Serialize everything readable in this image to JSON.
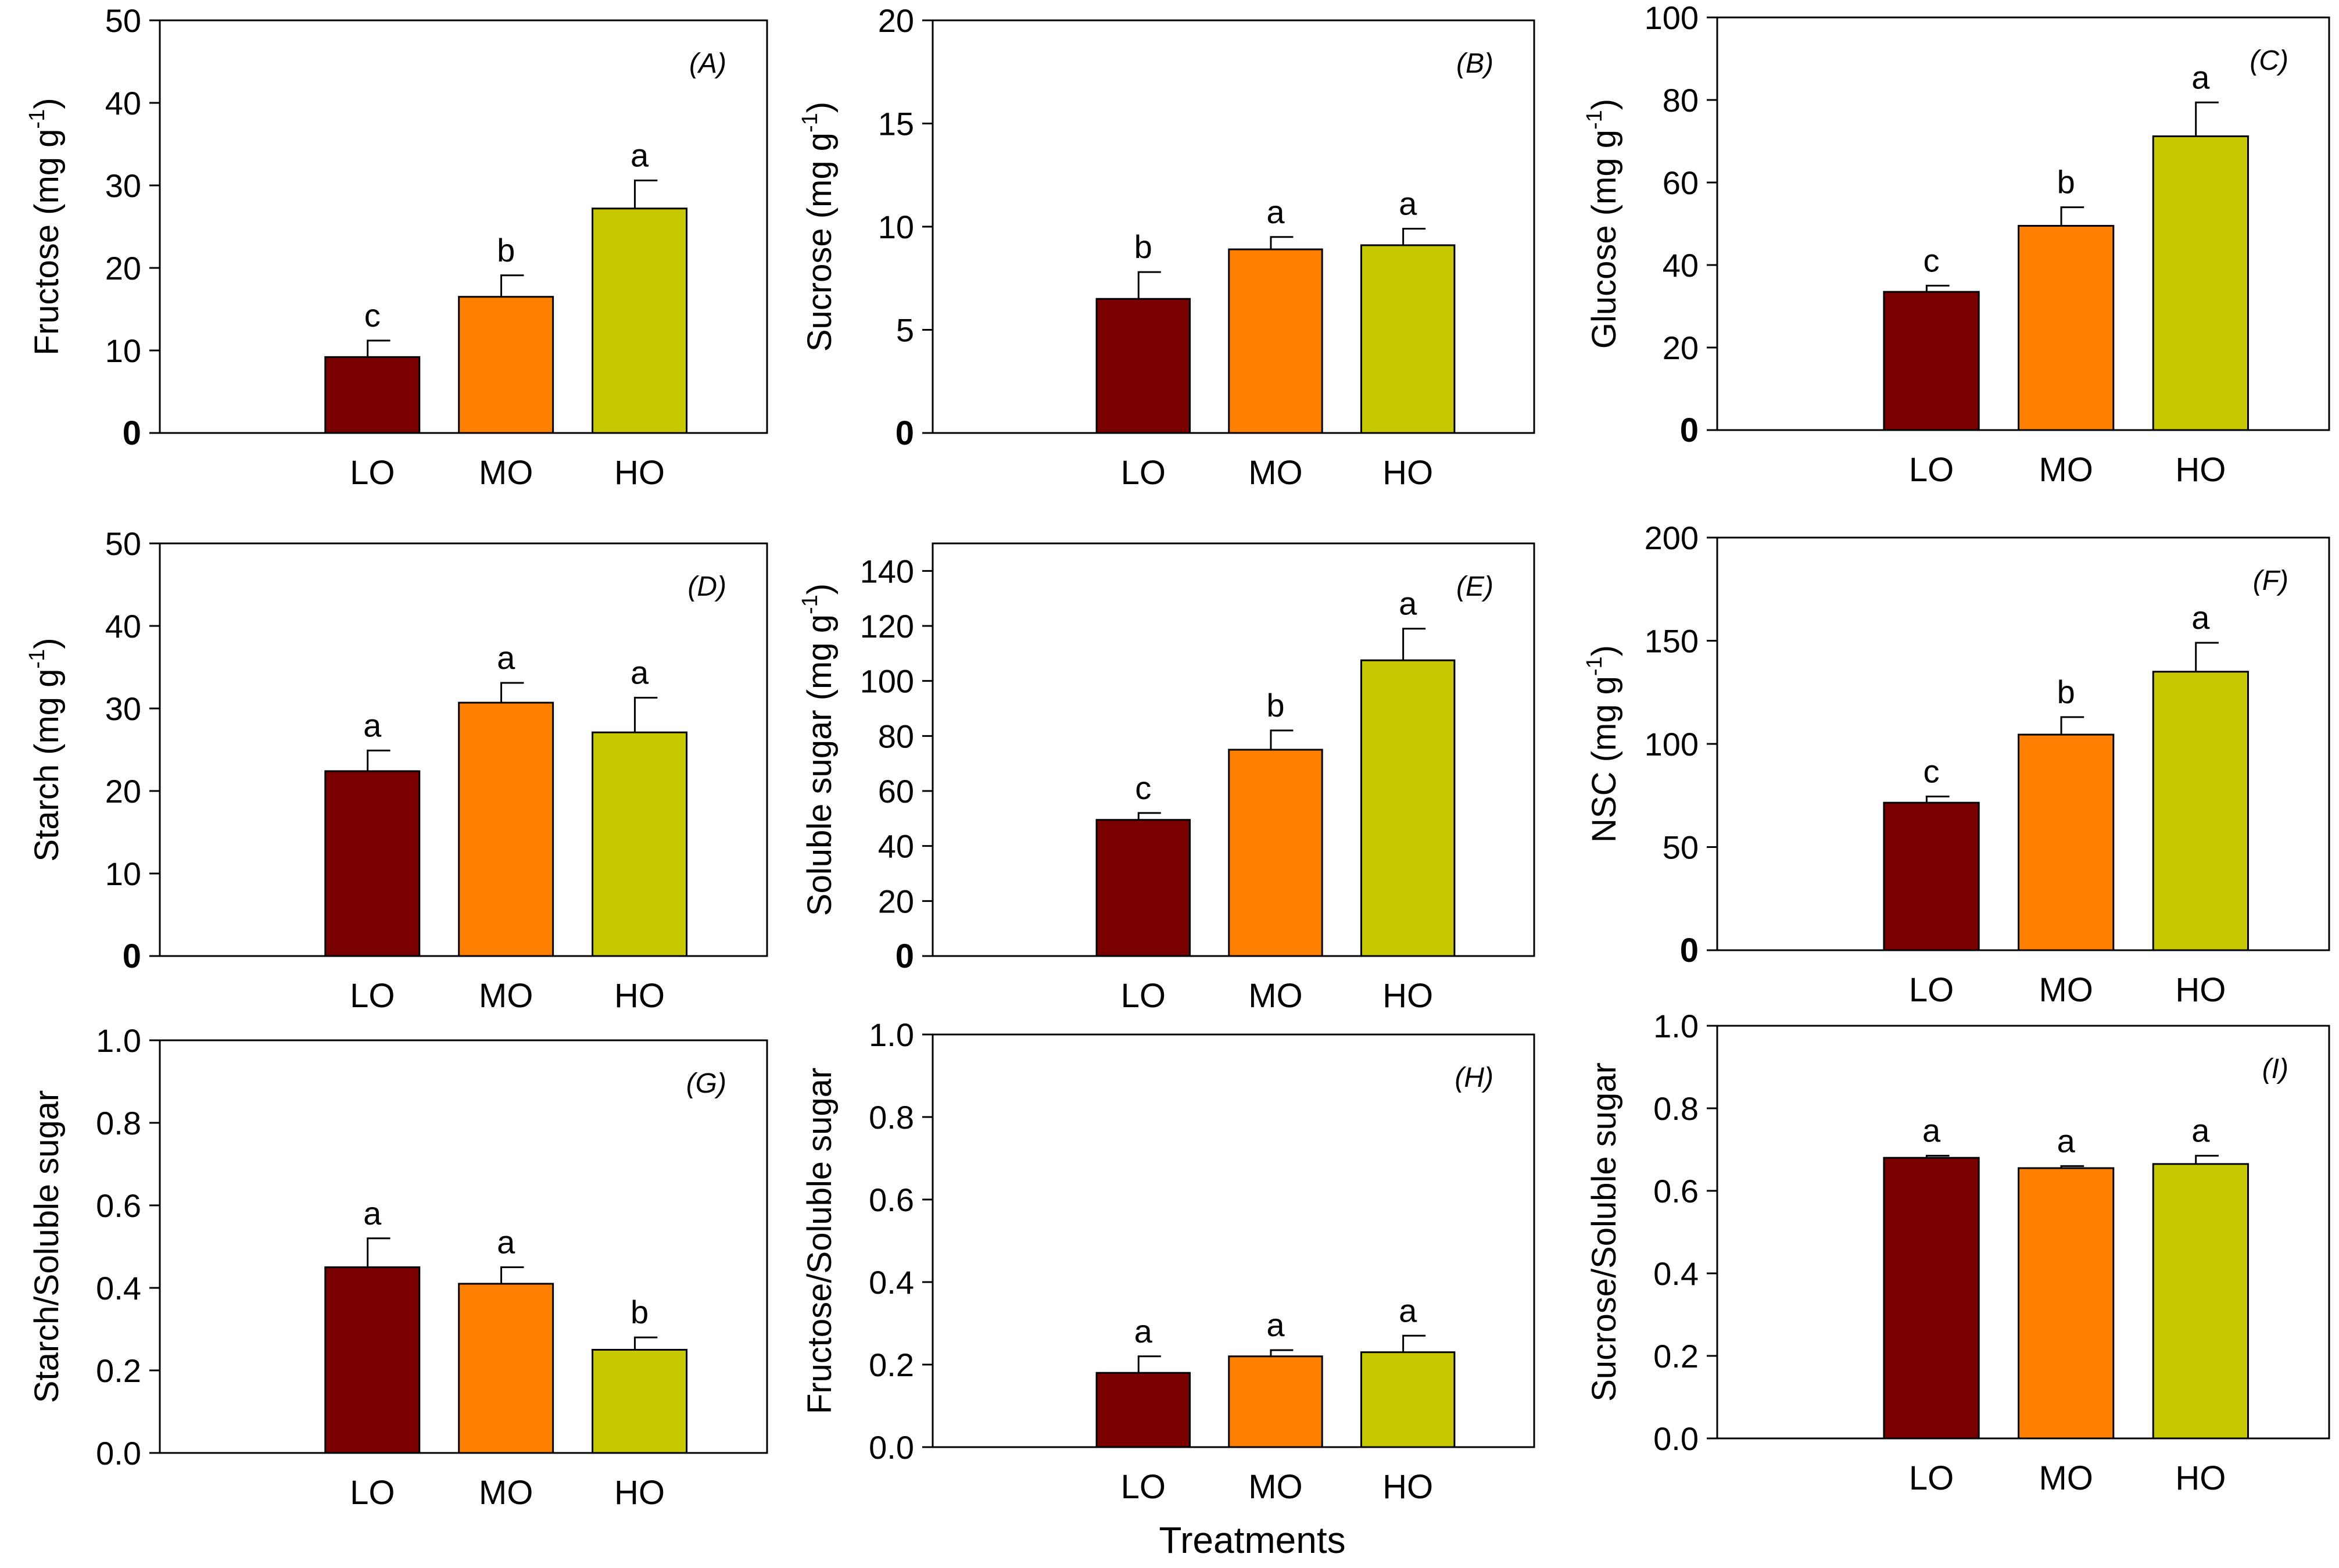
{
  "figure": {
    "common_xlabel": "Treatments",
    "categories": [
      "LO",
      "MO",
      "HO"
    ],
    "bar_colors": [
      "#7a0000",
      "#ff8000",
      "#c8c800"
    ]
  },
  "chart_data": [
    {
      "panel": "(A)",
      "type": "bar",
      "ylabel": "Fructose (mg g",
      "ylabel_sup": "-1",
      "ylabel_close": ")",
      "categories": [
        "LO",
        "MO",
        "HO"
      ],
      "values": [
        9.2,
        16.5,
        27.2
      ],
      "errors": [
        2.0,
        2.6,
        3.4
      ],
      "letters": [
        "c",
        "b",
        "a"
      ],
      "ylim": [
        0,
        50
      ],
      "yticks": [
        0,
        10,
        20,
        30,
        40,
        50
      ],
      "ytick_labels": [
        "0",
        "10",
        "20",
        "30",
        "40",
        "50"
      ]
    },
    {
      "panel": "(B)",
      "type": "bar",
      "ylabel": "Sucrose (mg g",
      "ylabel_sup": "-1",
      "ylabel_close": ")",
      "categories": [
        "LO",
        "MO",
        "HO"
      ],
      "values": [
        6.5,
        8.9,
        9.1
      ],
      "errors": [
        1.3,
        0.6,
        0.8
      ],
      "letters": [
        "b",
        "a",
        "a"
      ],
      "ylim": [
        0,
        20
      ],
      "yticks": [
        0,
        5,
        10,
        15,
        20
      ],
      "ytick_labels": [
        "0",
        "5",
        "10",
        "15",
        "20"
      ]
    },
    {
      "panel": "(C)",
      "type": "bar",
      "ylabel": "Glucose (mg g",
      "ylabel_sup": "-1",
      "ylabel_close": ")",
      "categories": [
        "LO",
        "MO",
        "HO"
      ],
      "values": [
        33.5,
        49.5,
        71.2
      ],
      "errors": [
        1.5,
        4.5,
        8.2
      ],
      "letters": [
        "c",
        "b",
        "a"
      ],
      "ylim": [
        0,
        100
      ],
      "yticks": [
        0,
        20,
        40,
        60,
        80,
        100
      ],
      "ytick_labels": [
        "0",
        "20",
        "40",
        "60",
        "80",
        "100"
      ]
    },
    {
      "panel": "(D)",
      "type": "bar",
      "ylabel": "Starch (mg g",
      "ylabel_sup": "-1",
      "ylabel_close": ")",
      "categories": [
        "LO",
        "MO",
        "HO"
      ],
      "values": [
        22.4,
        30.7,
        27.1
      ],
      "errors": [
        2.5,
        2.4,
        4.2
      ],
      "letters": [
        "a",
        "a",
        "a"
      ],
      "ylim": [
        0,
        50
      ],
      "yticks": [
        0,
        10,
        20,
        30,
        40,
        50
      ],
      "ytick_labels": [
        "0",
        "10",
        "20",
        "30",
        "40",
        "50"
      ]
    },
    {
      "panel": "(E)",
      "type": "bar",
      "ylabel": "Soluble sugar (mg g",
      "ylabel_sup": "-1",
      "ylabel_close": ")",
      "categories": [
        "LO",
        "MO",
        "HO"
      ],
      "values": [
        49.5,
        75.0,
        107.5
      ],
      "errors": [
        2.5,
        7.0,
        11.5
      ],
      "letters": [
        "c",
        "b",
        "a"
      ],
      "ylim": [
        0,
        150
      ],
      "yticks": [
        0,
        20,
        40,
        60,
        80,
        100,
        120,
        140
      ],
      "ytick_labels": [
        "0",
        "20",
        "40",
        "60",
        "80",
        "100",
        "120",
        "140"
      ]
    },
    {
      "panel": "(F)",
      "type": "bar",
      "ylabel": "NSC (mg g",
      "ylabel_sup": "-1",
      "ylabel_close": ")",
      "categories": [
        "LO",
        "MO",
        "HO"
      ],
      "values": [
        71.5,
        104.5,
        135.0
      ],
      "errors": [
        3.0,
        8.5,
        14.0
      ],
      "letters": [
        "c",
        "b",
        "a"
      ],
      "ylim": [
        0,
        200
      ],
      "yticks": [
        0,
        50,
        100,
        150,
        200
      ],
      "ytick_labels": [
        "0",
        "50",
        "100",
        "150",
        "200"
      ]
    },
    {
      "panel": "(G)",
      "type": "bar",
      "ylabel": "Starch/Soluble sugar",
      "ylabel_sup": "",
      "ylabel_close": "",
      "categories": [
        "LO",
        "MO",
        "HO"
      ],
      "values": [
        0.45,
        0.41,
        0.25
      ],
      "errors": [
        0.07,
        0.04,
        0.03
      ],
      "letters": [
        "a",
        "a",
        "b"
      ],
      "ylim": [
        0,
        1.0
      ],
      "yticks": [
        0,
        0.2,
        0.4,
        0.6,
        0.8,
        1.0
      ],
      "ytick_labels": [
        "0.0",
        "0.2",
        "0.4",
        "0.6",
        "0.8",
        "1.0"
      ]
    },
    {
      "panel": "(H)",
      "type": "bar",
      "ylabel": "Fructose/Soluble sugar",
      "ylabel_sup": "",
      "ylabel_close": "",
      "categories": [
        "LO",
        "MO",
        "HO"
      ],
      "values": [
        0.18,
        0.22,
        0.23
      ],
      "errors": [
        0.04,
        0.015,
        0.04
      ],
      "letters": [
        "a",
        "a",
        "a"
      ],
      "ylim": [
        0,
        1.0
      ],
      "yticks": [
        0,
        0.2,
        0.4,
        0.6,
        0.8,
        1.0
      ],
      "ytick_labels": [
        "0.0",
        "0.2",
        "0.4",
        "0.6",
        "0.8",
        "1.0"
      ]
    },
    {
      "panel": "(I)",
      "type": "bar",
      "ylabel": "Sucrose/Soluble sugar",
      "ylabel_sup": "",
      "ylabel_close": "",
      "categories": [
        "LO",
        "MO",
        "HO"
      ],
      "values": [
        0.68,
        0.655,
        0.665
      ],
      "errors": [
        0.005,
        0.005,
        0.02
      ],
      "letters": [
        "a",
        "a",
        "a"
      ],
      "ylim": [
        0,
        1.0
      ],
      "yticks": [
        0,
        0.2,
        0.4,
        0.6,
        0.8,
        1.0
      ],
      "ytick_labels": [
        "0.0",
        "0.2",
        "0.4",
        "0.6",
        "0.8",
        "1.0"
      ]
    }
  ]
}
